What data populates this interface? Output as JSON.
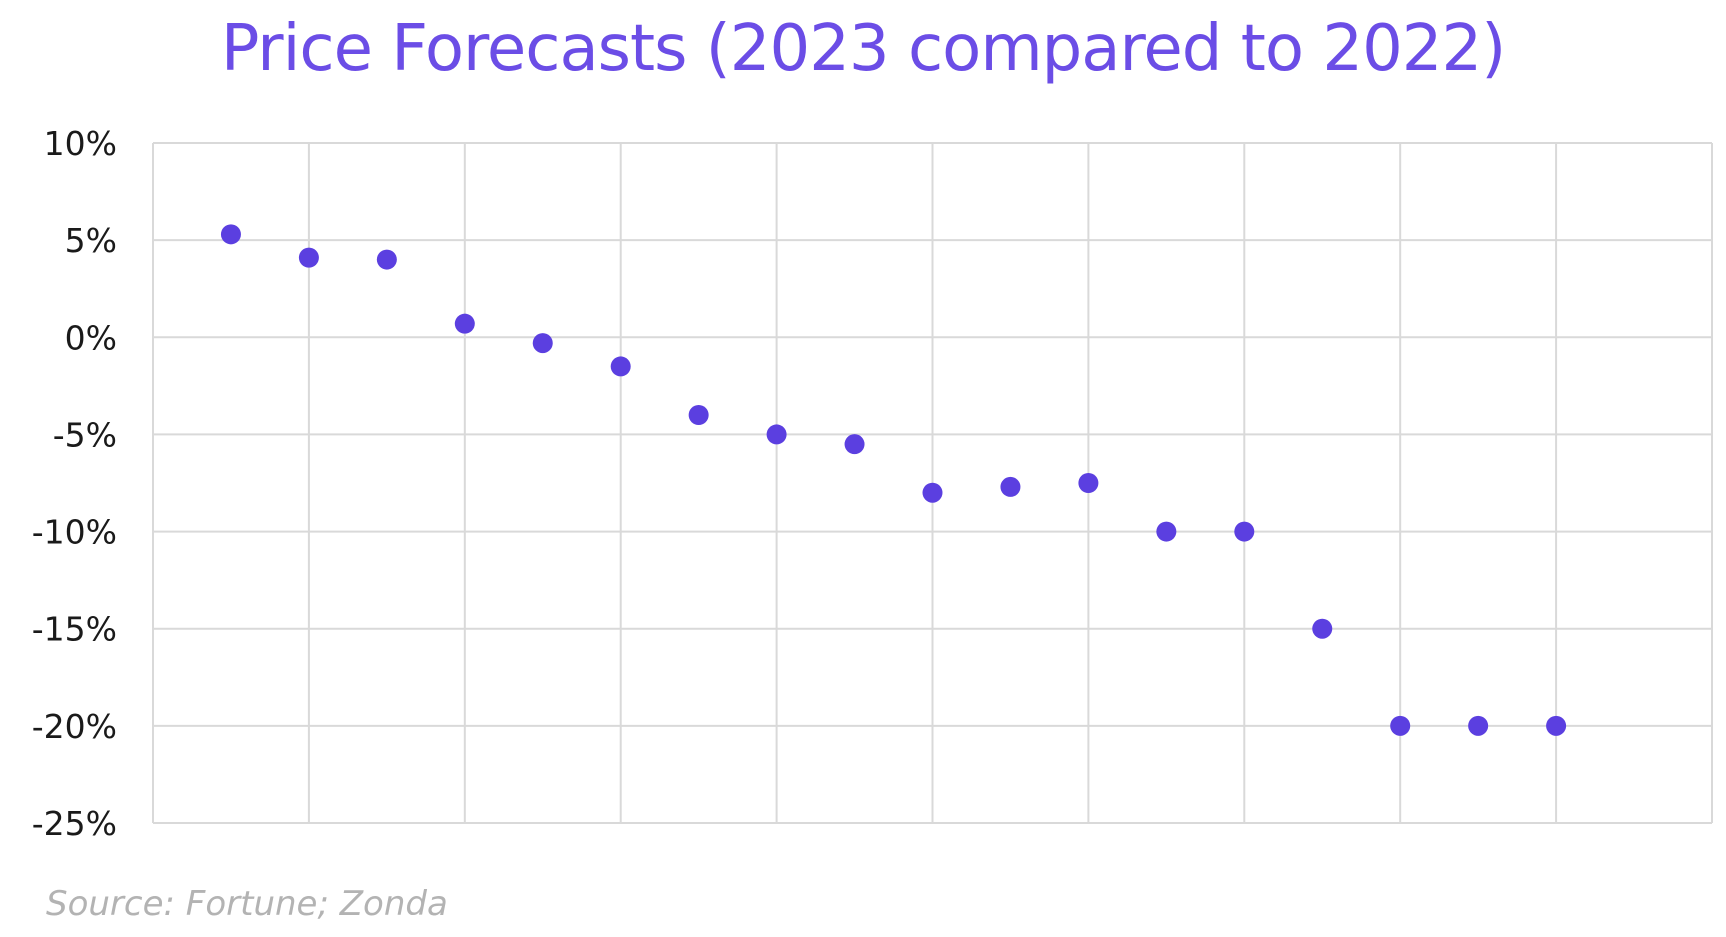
{
  "chart_data": {
    "type": "scatter",
    "title": "Price Forecasts (2023 compared to 2022)",
    "xlabel": "",
    "ylabel": "",
    "y_tick_labels": [
      "10%",
      "5%",
      "0%",
      "-5%",
      "-10%",
      "-15%",
      "-20%",
      "-25%"
    ],
    "ylim": [
      -25,
      10
    ],
    "y_unit": "%",
    "x": [
      1,
      2,
      3,
      4,
      5,
      6,
      7,
      8,
      9,
      10,
      11,
      12,
      13,
      14,
      15,
      16,
      17,
      18
    ],
    "xlim": [
      0,
      20
    ],
    "values": [
      5.3,
      4.1,
      4.0,
      0.7,
      -0.3,
      -1.5,
      -4.0,
      -5.0,
      -5.5,
      -8.0,
      -7.7,
      -7.5,
      -10.0,
      -10.0,
      -15.0,
      -20.0,
      -20.0,
      -20.0
    ],
    "grid": true,
    "legend": "none",
    "source": "Source: Fortune; Zonda"
  },
  "colors": {
    "title": "#6b4de6",
    "marker": "#5b3fe0",
    "grid": "#d9d9d9",
    "source": "#b3b3b3"
  }
}
